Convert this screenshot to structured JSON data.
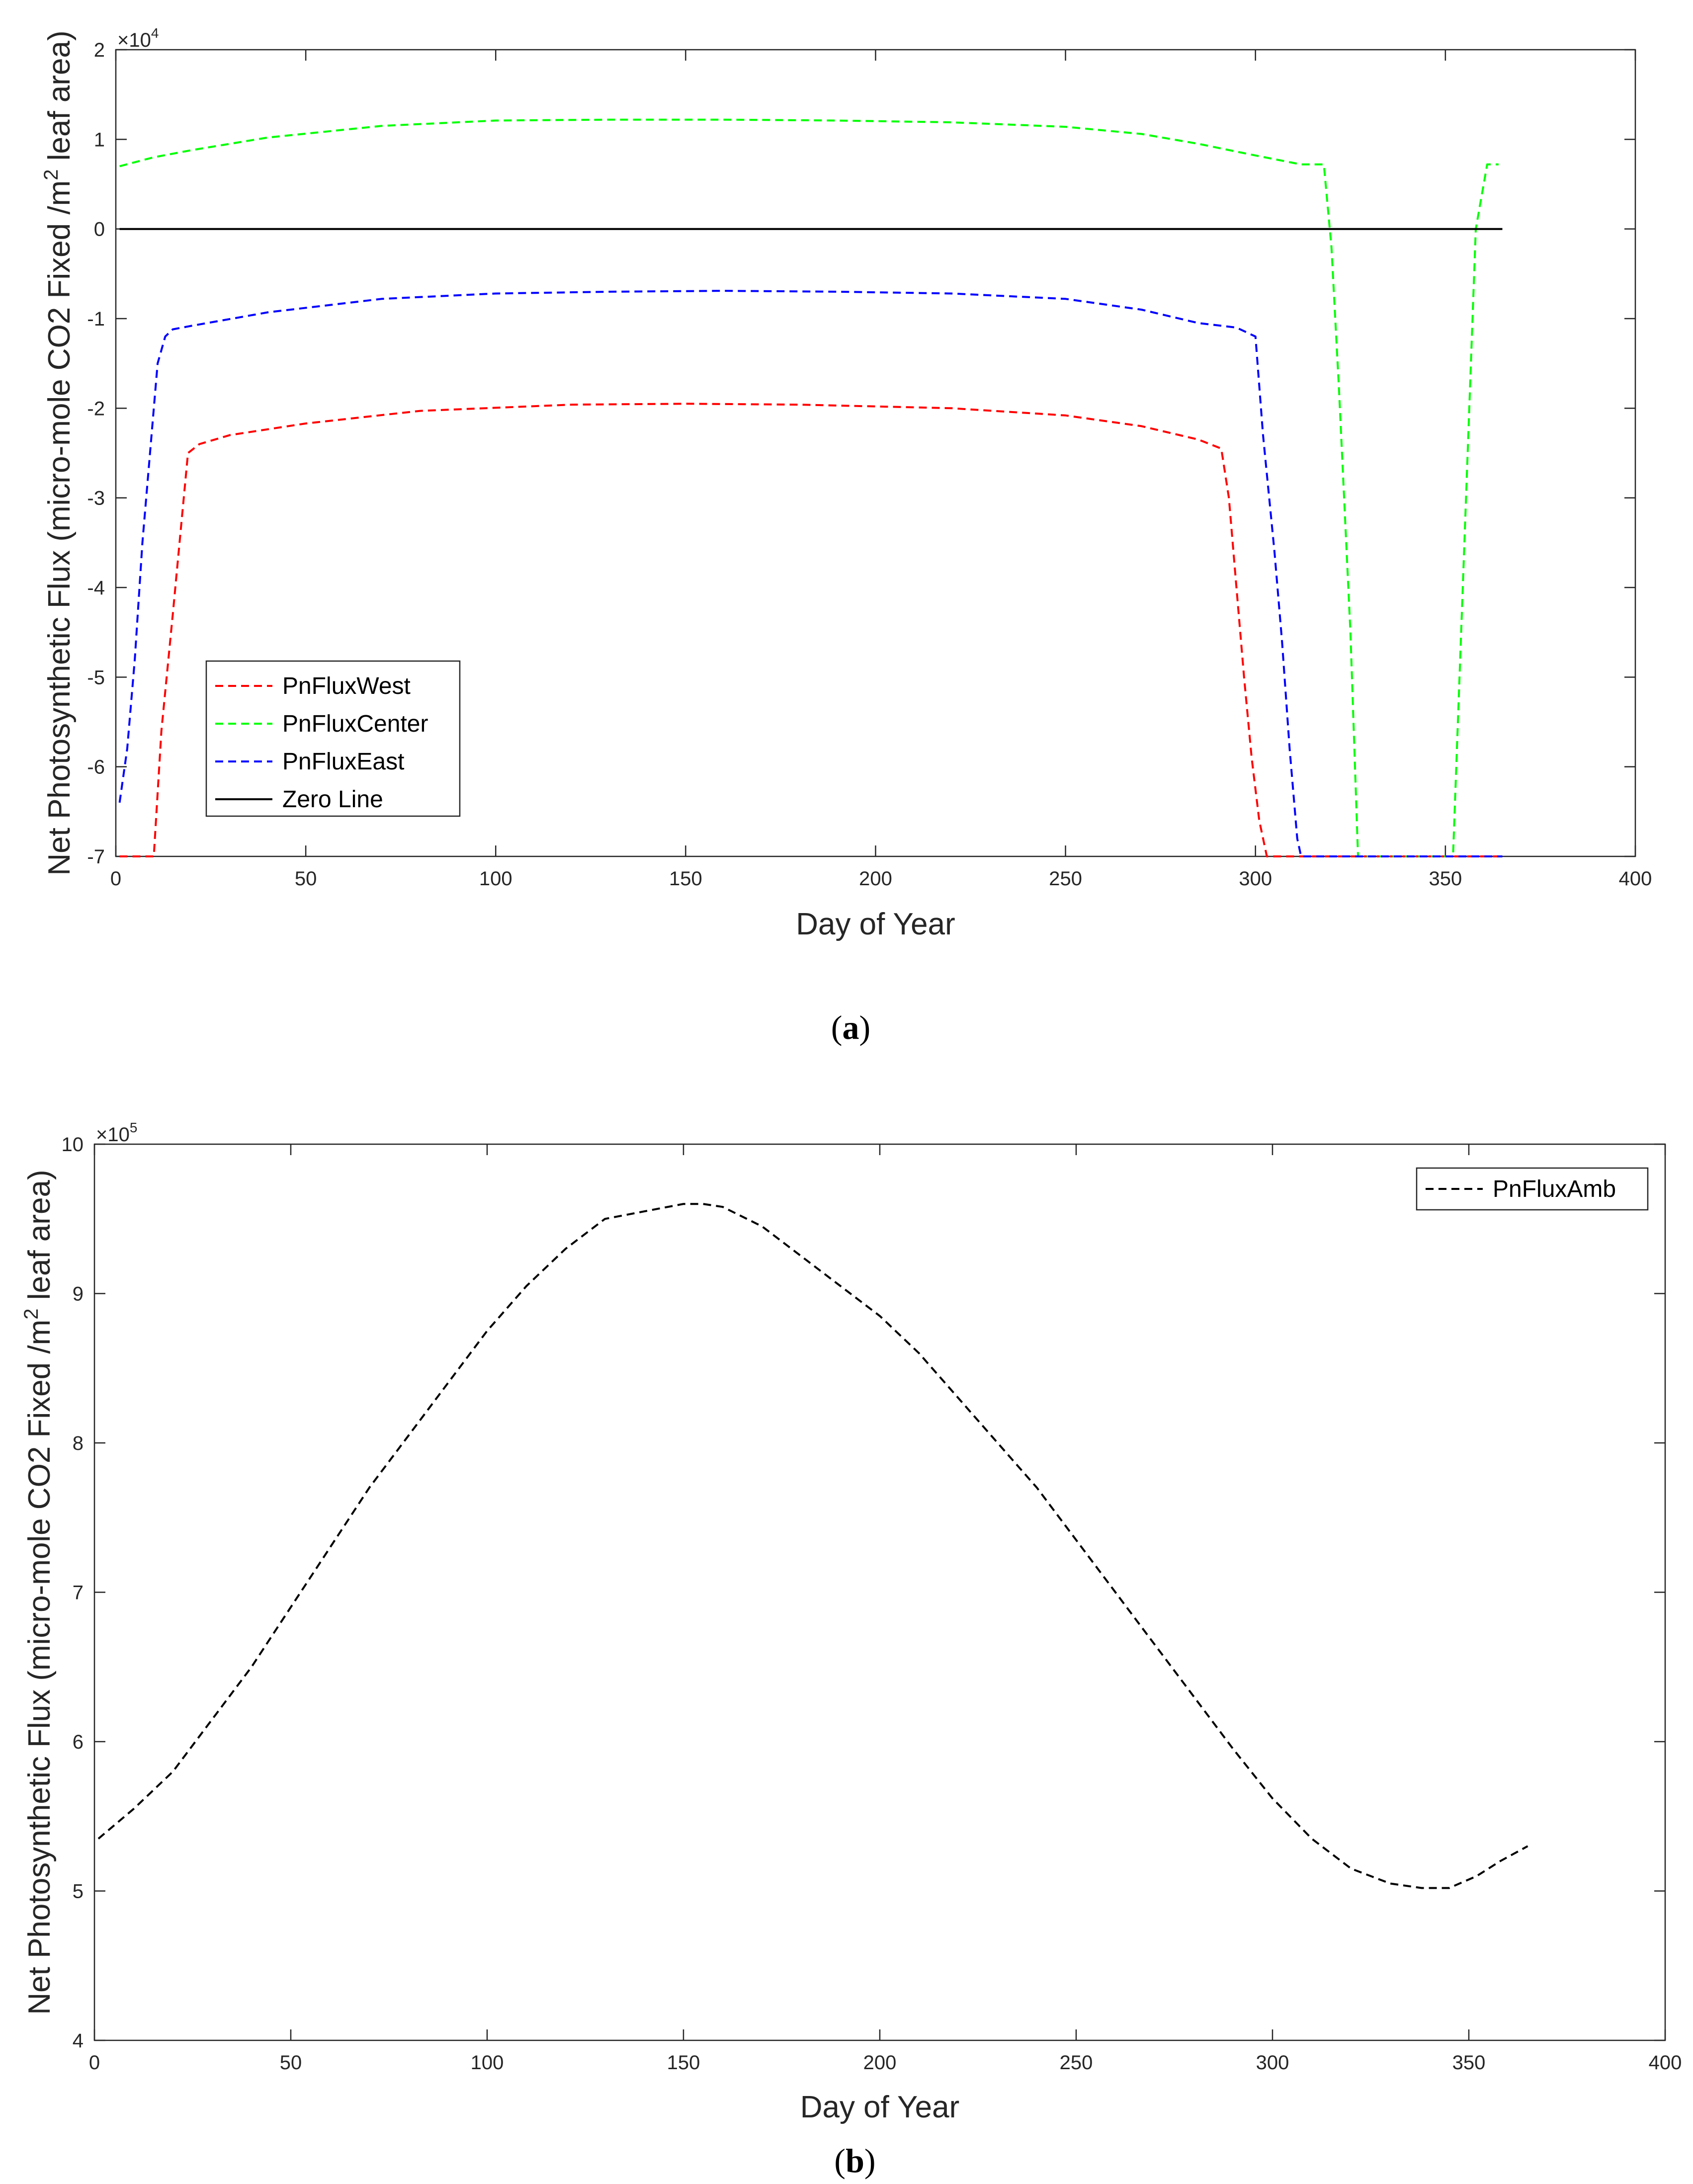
{
  "chart_data": [
    {
      "type": "line",
      "caption": {
        "open": "(",
        "letter": "a",
        "close": ")"
      },
      "xlabel": "Day of Year",
      "ylabel": "Net Photosynthetic Flux (micro-mole CO2 Fixed /m",
      "ylabel_sup": "2",
      "ylabel_tail": " leaf area)",
      "exponent_base": "×10",
      "exponent_power": "4",
      "xlim": [
        0,
        400
      ],
      "ylim": [
        -7,
        2
      ],
      "xticks": [
        "0",
        "50",
        "100",
        "150",
        "200",
        "250",
        "300",
        "350",
        "400"
      ],
      "yticks": [
        "-7",
        "-6",
        "-5",
        "-4",
        "-3",
        "-2",
        "-1",
        "0",
        "1",
        "2"
      ],
      "legend_position": "bottom-left",
      "series": [
        {
          "name": "PnFluxWest",
          "color": "#ff0000",
          "dashed": true,
          "x": [
            1,
            10,
            12,
            15,
            17,
            19,
            22,
            30,
            50,
            80,
            120,
            150,
            180,
            220,
            250,
            270,
            285,
            291,
            293,
            295,
            297,
            299,
            301,
            303,
            310,
            365
          ],
          "y": [
            -7,
            -7,
            -5.6,
            -4.3,
            -3.4,
            -2.5,
            -2.4,
            -2.3,
            -2.17,
            -2.03,
            -1.96,
            -1.95,
            -1.96,
            -2.0,
            -2.08,
            -2.2,
            -2.35,
            -2.45,
            -3.0,
            -4.0,
            -5.0,
            -5.9,
            -6.6,
            -7,
            -7,
            -7
          ]
        },
        {
          "name": "PnFluxCenter",
          "color": "#00ff00",
          "dashed": true,
          "x": [
            1,
            10,
            20,
            40,
            70,
            100,
            130,
            160,
            190,
            220,
            250,
            270,
            285,
            300,
            312,
            318,
            320,
            322,
            325,
            327,
            352,
            355,
            358,
            361,
            364
          ],
          "y": [
            0.7,
            0.8,
            0.88,
            1.02,
            1.15,
            1.21,
            1.22,
            1.22,
            1.21,
            1.19,
            1.14,
            1.06,
            0.95,
            0.82,
            0.72,
            0.72,
            -0.2,
            -1.8,
            -4.5,
            -7,
            -7,
            -3.5,
            0.0,
            0.72,
            0.72
          ]
        },
        {
          "name": "PnFluxEast",
          "color": "#0000ff",
          "dashed": true,
          "x": [
            1,
            3,
            5,
            7,
            9,
            11,
            13,
            15,
            20,
            40,
            70,
            100,
            130,
            160,
            190,
            220,
            250,
            270,
            285,
            295,
            300,
            302,
            305,
            307,
            309,
            311,
            312,
            365
          ],
          "y": [
            -6.4,
            -5.8,
            -4.8,
            -3.5,
            -2.5,
            -1.5,
            -1.2,
            -1.12,
            -1.08,
            -0.93,
            -0.78,
            -0.72,
            -0.7,
            -0.69,
            -0.7,
            -0.72,
            -0.78,
            -0.9,
            -1.05,
            -1.1,
            -1.2,
            -2.3,
            -3.6,
            -4.6,
            -5.8,
            -6.8,
            -7,
            -7
          ]
        },
        {
          "name": "Zero Line",
          "color": "#000000",
          "dashed": false,
          "x": [
            1,
            365
          ],
          "y": [
            0,
            0
          ]
        }
      ]
    },
    {
      "type": "line",
      "caption": {
        "open": "(",
        "letter": "b",
        "close": ")"
      },
      "xlabel": "Day of Year",
      "ylabel": "Net Photosynthetic Flux (micro-mole CO2 Fixed /m",
      "ylabel_sup": "2",
      "ylabel_tail": " leaf area)",
      "exponent_base": "×10",
      "exponent_power": "5",
      "xlim": [
        0,
        400
      ],
      "ylim": [
        4,
        10
      ],
      "xticks": [
        "0",
        "50",
        "100",
        "150",
        "200",
        "250",
        "300",
        "350",
        "400"
      ],
      "yticks": [
        "4",
        "5",
        "6",
        "7",
        "8",
        "9",
        "10"
      ],
      "legend_position": "top-right",
      "series": [
        {
          "name": "PnFluxAmb",
          "color": "#000000",
          "dashed": true,
          "x": [
            1,
            10,
            20,
            30,
            40,
            50,
            60,
            70,
            80,
            90,
            100,
            110,
            120,
            130,
            140,
            150,
            155,
            160,
            170,
            180,
            190,
            200,
            210,
            220,
            230,
            240,
            250,
            260,
            270,
            280,
            290,
            300,
            310,
            320,
            330,
            338,
            345,
            352,
            358,
            365
          ],
          "y": [
            5.35,
            5.55,
            5.8,
            6.15,
            6.5,
            6.9,
            7.3,
            7.7,
            8.05,
            8.4,
            8.75,
            9.05,
            9.3,
            9.5,
            9.55,
            9.6,
            9.6,
            9.58,
            9.45,
            9.25,
            9.05,
            8.85,
            8.6,
            8.3,
            8.0,
            7.7,
            7.35,
            7.0,
            6.65,
            6.3,
            5.95,
            5.62,
            5.35,
            5.15,
            5.05,
            5.02,
            5.02,
            5.1,
            5.2,
            5.3
          ]
        }
      ]
    }
  ]
}
